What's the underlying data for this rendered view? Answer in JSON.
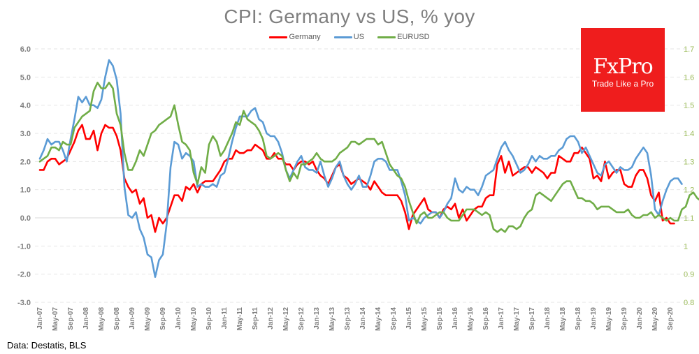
{
  "source_note": "Data: Destatis, BLS",
  "logo": {
    "name": "FxPro",
    "tagline": "Trade Like a Pro",
    "color": "#ef1d1d"
  },
  "chart_data": {
    "type": "line",
    "title": "CPI: Germany vs US, % yoy",
    "xlabel": "",
    "ylabel": "",
    "y2label": "",
    "legend_position": "top-center",
    "grid": true,
    "ylim": [
      -3.0,
      6.0
    ],
    "y2lim": [
      0.8,
      1.7
    ],
    "yticks": [
      "6.0",
      "5.0",
      "4.0",
      "3.0",
      "2.0",
      "1.0",
      "0.0",
      "-1.0",
      "-2.0",
      "-3.0"
    ],
    "y2ticks": [
      "1.7",
      "1.6",
      "1.5",
      "1.4",
      "1.3",
      "1.2",
      "1.1",
      "1",
      "0.9",
      "0.8"
    ],
    "x_start": "Jan-07",
    "x_end": "Oct-20",
    "xtick_labels": [
      "Jan-07",
      "May-07",
      "Sep-07",
      "Jan-08",
      "May-08",
      "Sep-08",
      "Jan-09",
      "May-09",
      "Sep-09",
      "Jan-10",
      "May-10",
      "Sep-10",
      "Jan-11",
      "May-11",
      "Sep-11",
      "Jan-12",
      "May-12",
      "Sep-12",
      "Jan-13",
      "May-13",
      "Sep-13",
      "Jan-14",
      "May-14",
      "Sep-14",
      "Jan-15",
      "May-15",
      "Sep-15",
      "Jan-16",
      "May-16",
      "Sep-16",
      "Jan-17",
      "May-17",
      "Sep-17",
      "Jan-18",
      "May-18",
      "Sep-18",
      "Jan-19",
      "May-19",
      "Sep-19",
      "Jan-20",
      "May-20",
      "Sep-20"
    ],
    "series": [
      {
        "name": "Germany",
        "axis": "left",
        "color": "#ff0000",
        "values": [
          1.7,
          1.7,
          2.0,
          2.1,
          2.1,
          1.9,
          2.0,
          2.1,
          2.4,
          2.7,
          3.1,
          3.3,
          2.8,
          2.8,
          3.1,
          2.4,
          3.0,
          3.3,
          3.2,
          3.2,
          2.9,
          2.4,
          1.4,
          1.1,
          0.9,
          1.0,
          0.5,
          0.7,
          0.0,
          0.1,
          -0.5,
          0.0,
          -0.2,
          0.0,
          0.4,
          0.8,
          0.8,
          0.6,
          1.1,
          1.0,
          1.2,
          0.9,
          1.2,
          1.3,
          1.3,
          1.3,
          1.5,
          1.7,
          2.0,
          2.1,
          2.1,
          2.4,
          2.3,
          2.3,
          2.4,
          2.4,
          2.6,
          2.5,
          2.4,
          2.1,
          2.1,
          2.3,
          2.1,
          2.1,
          1.9,
          1.9,
          1.7,
          1.9,
          2.0,
          2.0,
          1.9,
          2.0,
          1.7,
          1.5,
          1.4,
          1.2,
          1.5,
          1.8,
          1.9,
          1.5,
          1.4,
          1.2,
          1.3,
          1.4,
          1.3,
          1.2,
          1.0,
          1.3,
          1.1,
          0.9,
          0.8,
          0.8,
          0.8,
          0.8,
          0.6,
          0.2,
          -0.4,
          0.1,
          0.3,
          0.5,
          0.7,
          0.3,
          0.2,
          0.2,
          0.0,
          0.3,
          0.4,
          0.3,
          0.5,
          0.0,
          0.3,
          -0.1,
          0.1,
          0.3,
          0.4,
          0.4,
          0.7,
          0.8,
          0.8,
          1.9,
          2.2,
          1.6,
          2.0,
          1.5,
          1.6,
          1.7,
          1.8,
          1.8,
          1.6,
          1.8,
          1.7,
          1.6,
          1.4,
          1.6,
          1.6,
          2.2,
          2.1,
          2.0,
          2.0,
          2.3,
          2.3,
          2.5,
          2.3,
          2.1,
          1.4,
          1.5,
          1.3,
          2.0,
          1.4,
          1.6,
          1.7,
          1.7,
          1.2,
          1.1,
          1.1,
          1.5,
          1.7,
          1.7,
          1.4,
          0.8,
          0.6,
          0.9,
          -0.1,
          0.0,
          -0.2,
          -0.2
        ]
      },
      {
        "name": "US",
        "axis": "left",
        "color": "#5b9bd5",
        "values": [
          2.1,
          2.4,
          2.8,
          2.6,
          2.7,
          2.7,
          2.4,
          2.0,
          2.8,
          3.5,
          4.3,
          4.1,
          4.3,
          4.0,
          4.0,
          3.9,
          4.2,
          5.0,
          5.6,
          5.4,
          4.9,
          3.7,
          1.1,
          0.1,
          0.0,
          0.2,
          -0.4,
          -0.7,
          -1.3,
          -1.4,
          -2.1,
          -1.5,
          -1.3,
          -0.2,
          1.8,
          2.7,
          2.6,
          2.1,
          2.3,
          2.2,
          2.0,
          1.1,
          1.2,
          1.1,
          1.1,
          1.2,
          1.1,
          1.5,
          1.6,
          2.1,
          2.7,
          3.2,
          3.6,
          3.6,
          3.6,
          3.8,
          3.9,
          3.5,
          3.4,
          3.0,
          2.9,
          2.9,
          2.7,
          2.3,
          1.7,
          1.4,
          1.7,
          2.0,
          2.2,
          1.8,
          1.7,
          1.7,
          1.6,
          2.0,
          1.5,
          1.1,
          1.4,
          1.8,
          2.0,
          1.5,
          1.2,
          1.0,
          1.2,
          1.5,
          1.1,
          1.1,
          1.5,
          2.0,
          2.1,
          2.1,
          2.0,
          1.7,
          1.7,
          1.7,
          1.3,
          0.8,
          -0.1,
          0.0,
          -0.1,
          -0.2,
          0.0,
          0.1,
          0.2,
          0.2,
          0.0,
          0.2,
          0.5,
          0.7,
          1.4,
          1.0,
          0.9,
          1.1,
          1.0,
          1.0,
          0.8,
          1.1,
          1.5,
          1.6,
          1.7,
          2.1,
          2.5,
          2.7,
          2.4,
          2.2,
          1.9,
          1.6,
          1.7,
          1.9,
          2.2,
          2.0,
          2.2,
          2.1,
          2.1,
          2.2,
          2.2,
          2.4,
          2.5,
          2.8,
          2.9,
          2.9,
          2.7,
          2.3,
          2.5,
          2.2,
          1.9,
          1.6,
          1.5,
          1.9,
          2.0,
          1.8,
          1.6,
          1.8,
          1.7,
          1.7,
          1.8,
          2.1,
          2.3,
          2.5,
          2.3,
          1.5,
          0.3,
          0.1,
          0.6,
          1.0,
          1.3,
          1.4,
          1.4,
          1.2
        ]
      },
      {
        "name": "EURUSD",
        "axis": "right",
        "color": "#70ad47",
        "values": [
          1.3,
          1.31,
          1.32,
          1.35,
          1.35,
          1.34,
          1.37,
          1.36,
          1.36,
          1.42,
          1.44,
          1.46,
          1.47,
          1.48,
          1.55,
          1.58,
          1.56,
          1.56,
          1.58,
          1.56,
          1.47,
          1.43,
          1.33,
          1.27,
          1.27,
          1.3,
          1.34,
          1.32,
          1.36,
          1.4,
          1.41,
          1.43,
          1.44,
          1.45,
          1.46,
          1.5,
          1.43,
          1.37,
          1.36,
          1.34,
          1.26,
          1.22,
          1.28,
          1.26,
          1.36,
          1.39,
          1.37,
          1.32,
          1.34,
          1.37,
          1.4,
          1.44,
          1.43,
          1.48,
          1.45,
          1.44,
          1.43,
          1.41,
          1.38,
          1.32,
          1.31,
          1.32,
          1.33,
          1.32,
          1.27,
          1.23,
          1.26,
          1.24,
          1.29,
          1.29,
          1.3,
          1.31,
          1.33,
          1.31,
          1.3,
          1.3,
          1.3,
          1.31,
          1.33,
          1.34,
          1.35,
          1.37,
          1.37,
          1.36,
          1.37,
          1.38,
          1.38,
          1.38,
          1.36,
          1.37,
          1.33,
          1.29,
          1.27,
          1.25,
          1.24,
          1.21,
          1.16,
          1.12,
          1.08,
          1.11,
          1.12,
          1.1,
          1.1,
          1.11,
          1.12,
          1.12,
          1.1,
          1.09,
          1.09,
          1.09,
          1.11,
          1.13,
          1.13,
          1.13,
          1.12,
          1.11,
          1.12,
          1.11,
          1.06,
          1.05,
          1.06,
          1.05,
          1.07,
          1.07,
          1.06,
          1.07,
          1.1,
          1.12,
          1.13,
          1.18,
          1.19,
          1.18,
          1.17,
          1.16,
          1.18,
          1.2,
          1.22,
          1.23,
          1.23,
          1.2,
          1.17,
          1.17,
          1.16,
          1.16,
          1.15,
          1.13,
          1.14,
          1.14,
          1.14,
          1.13,
          1.12,
          1.12,
          1.12,
          1.13,
          1.11,
          1.1,
          1.1,
          1.11,
          1.11,
          1.12,
          1.1,
          1.11,
          1.1,
          1.09,
          1.1,
          1.09,
          1.09,
          1.13,
          1.14,
          1.18,
          1.19,
          1.17,
          1.16,
          1.16
        ]
      }
    ]
  }
}
